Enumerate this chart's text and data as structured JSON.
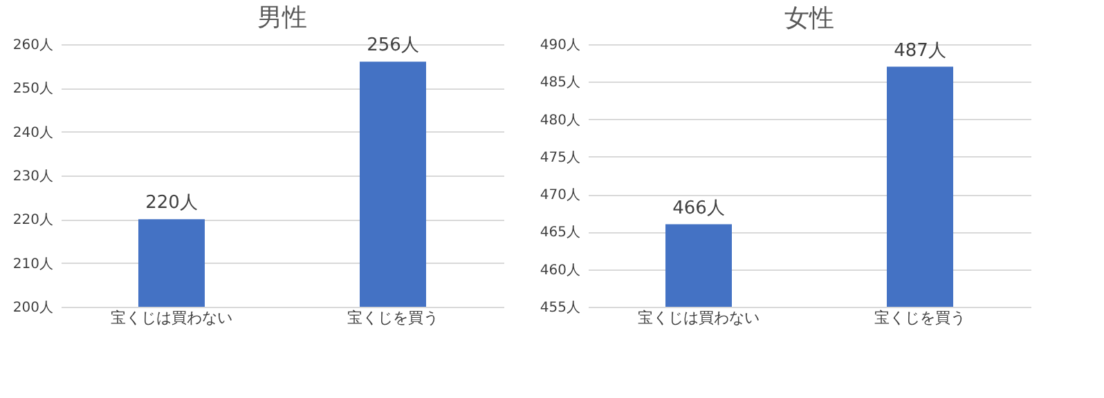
{
  "chart_data": [
    {
      "type": "bar",
      "title": "男性",
      "categories": [
        "宝くじは買わない",
        "宝くじを買う"
      ],
      "values": [
        220,
        256
      ],
      "color": "#4472c4",
      "value_labels": [
        "220人",
        "256人"
      ],
      "ylim": [
        200,
        260
      ],
      "yticks": [
        {
          "value": 200,
          "label": "200人"
        },
        {
          "value": 210,
          "label": "210人"
        },
        {
          "value": 220,
          "label": "220人"
        },
        {
          "value": 230,
          "label": "230人"
        },
        {
          "value": 240,
          "label": "240人"
        },
        {
          "value": 250,
          "label": "250人"
        },
        {
          "value": 260,
          "label": "260人"
        }
      ],
      "grid": "y"
    },
    {
      "type": "bar",
      "title": "女性",
      "categories": [
        "宝くじは買わない",
        "宝くじを買う"
      ],
      "values": [
        466,
        487
      ],
      "color": "#4472c4",
      "value_labels": [
        "466人",
        "487人"
      ],
      "ylim": [
        455,
        490
      ],
      "yticks": [
        {
          "value": 455,
          "label": "455人"
        },
        {
          "value": 460,
          "label": "460人"
        },
        {
          "value": 465,
          "label": "465人"
        },
        {
          "value": 470,
          "label": "470人"
        },
        {
          "value": 475,
          "label": "475人"
        },
        {
          "value": 480,
          "label": "480人"
        },
        {
          "value": 485,
          "label": "485人"
        },
        {
          "value": 490,
          "label": "490人"
        }
      ],
      "grid": "y"
    }
  ]
}
